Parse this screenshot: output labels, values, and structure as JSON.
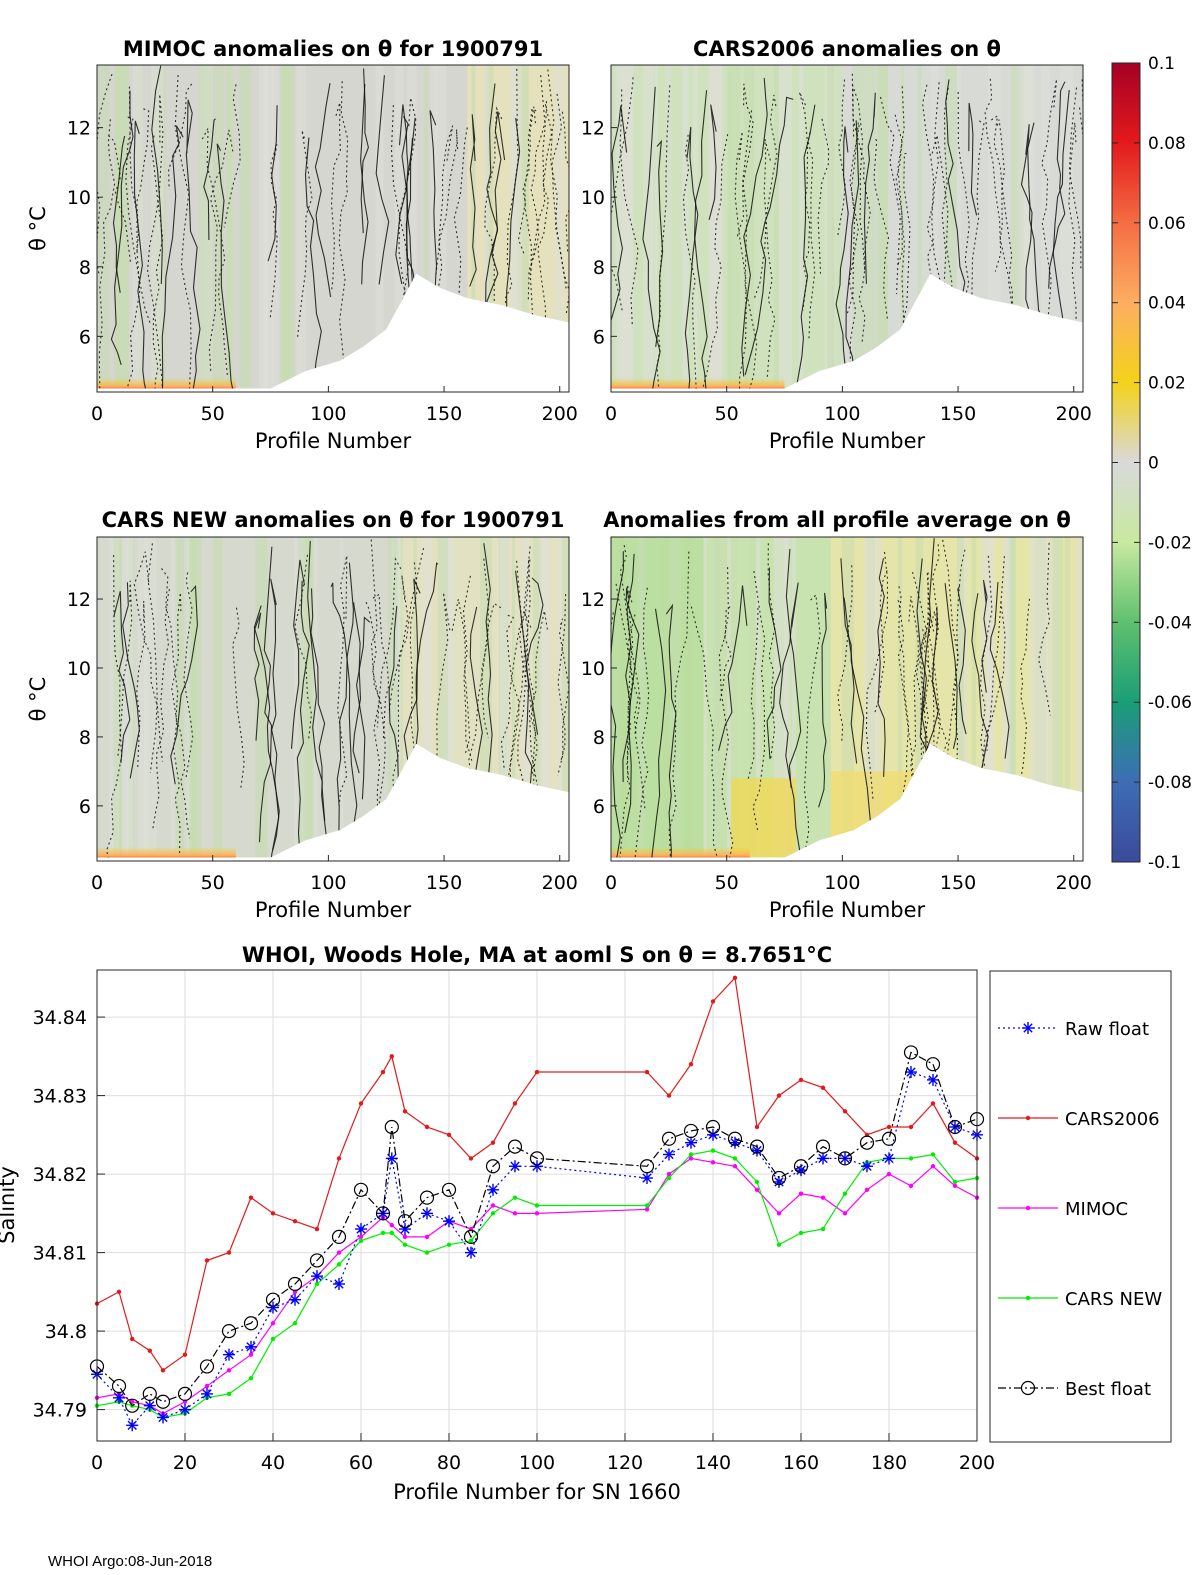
{
  "footer": "WHOI Argo:08-Jun-2018",
  "colorbar": {
    "ticks": [
      "0.1",
      "0.08",
      "0.06",
      "0.04",
      "0.02",
      "0",
      "-0.02",
      "-0.04",
      "-0.06",
      "-0.08",
      "-0.1"
    ],
    "values": [
      0.1,
      0.08,
      0.06,
      0.04,
      0.02,
      0,
      -0.02,
      -0.04,
      -0.06,
      -0.08,
      -0.1
    ],
    "stops": [
      "#a50026",
      "#e31a1c",
      "#f46d43",
      "#fdae61",
      "#f3d21a",
      "#d9d9d9",
      "#c7e9a0",
      "#5fc06e",
      "#1a9e77",
      "#3d6db5",
      "#3b4a9b"
    ]
  },
  "panels": [
    {
      "id": "mimoc",
      "title": "MIMOC anomalies on θ  for 1900791",
      "xlabel": "Profile Number",
      "ylabel": "θ °C",
      "xticks": [
        "0",
        "50",
        "100",
        "150",
        "200"
      ],
      "yticks": [
        "6",
        "8",
        "10",
        "12"
      ],
      "fill": "#d4d6cf",
      "tint": "#e6e3b8",
      "tint_from": 160,
      "tint_to": 204,
      "bottom_hot": true
    },
    {
      "id": "cars2006",
      "title": "CARS2006 anomalies on θ",
      "xlabel": "Profile Number",
      "ylabel": "",
      "xticks": [
        "0",
        "50",
        "100",
        "150",
        "200"
      ],
      "yticks": [
        "6",
        "8",
        "10",
        "12"
      ],
      "fill": "#cfe2bd",
      "tint": "#d9d9d9",
      "tint_from": 100,
      "tint_to": 204,
      "bottom_hot": true
    },
    {
      "id": "carsnew",
      "title": "CARS NEW anomalies on θ for 1900791",
      "xlabel": "Profile Number",
      "ylabel": "θ °C",
      "xticks": [
        "0",
        "50",
        "100",
        "150",
        "200"
      ],
      "yticks": [
        "6",
        "8",
        "10",
        "12"
      ],
      "fill": "#d6d9cd",
      "tint": "#e4e3bf",
      "tint_from": 130,
      "tint_to": 204,
      "bottom_hot": true
    },
    {
      "id": "allavg",
      "title": "Anomalies from all profile average on θ",
      "xlabel": "Profile Number",
      "ylabel": "",
      "xticks": [
        "0",
        "50",
        "100",
        "150",
        "200"
      ],
      "yticks": [
        "6",
        "8",
        "10",
        "12"
      ],
      "fill": "#c9e3b0",
      "tint": "#ebe5a8",
      "tint_from": 95,
      "tint_to": 204,
      "bottom_hot": true
    }
  ],
  "chart_data": {
    "type": "line",
    "title": "WHOI, Woods Hole, MA at aoml S on θ = 8.7651°C",
    "xlabel": "Profile Number for SN 1660",
    "ylabel": "Salinity",
    "xlim": [
      0,
      200
    ],
    "ylim": [
      34.786,
      34.846
    ],
    "xticks": [
      "0",
      "20",
      "40",
      "60",
      "80",
      "100",
      "120",
      "140",
      "160",
      "180",
      "200"
    ],
    "yticks": [
      "34.79",
      "34.8",
      "34.81",
      "34.82",
      "34.83",
      "34.84"
    ],
    "x": [
      0,
      5,
      8,
      12,
      15,
      20,
      25,
      30,
      35,
      40,
      45,
      50,
      55,
      60,
      65,
      67,
      70,
      75,
      80,
      85,
      90,
      95,
      100,
      125,
      130,
      135,
      140,
      145,
      150,
      155,
      160,
      165,
      170,
      175,
      180,
      185,
      190,
      195,
      200
    ],
    "series": [
      {
        "name": "Raw float",
        "color": "#0000ff",
        "style": "dotted",
        "marker": "star",
        "values": [
          34.7945,
          34.7915,
          34.788,
          34.7905,
          34.789,
          34.79,
          34.792,
          34.797,
          34.798,
          34.803,
          34.804,
          34.807,
          34.806,
          34.813,
          34.815,
          34.822,
          34.813,
          34.815,
          34.814,
          34.81,
          34.818,
          34.821,
          34.821,
          34.8195,
          34.8225,
          34.824,
          34.825,
          34.824,
          34.823,
          34.819,
          34.8205,
          34.822,
          34.822,
          34.821,
          34.822,
          34.833,
          34.832,
          34.826,
          34.825
        ]
      },
      {
        "name": "CARS2006",
        "color": "#e31a1c",
        "style": "solid",
        "marker": "dot",
        "values": [
          34.8035,
          34.805,
          34.799,
          34.7975,
          34.795,
          34.797,
          34.809,
          34.81,
          34.817,
          34.815,
          34.814,
          34.813,
          34.822,
          34.829,
          34.833,
          34.835,
          34.828,
          34.826,
          34.825,
          34.822,
          34.824,
          34.829,
          34.833,
          34.833,
          34.83,
          34.834,
          34.842,
          34.845,
          34.826,
          34.83,
          34.832,
          34.831,
          34.828,
          34.825,
          34.826,
          34.826,
          34.829,
          34.824,
          34.822
        ]
      },
      {
        "name": "MIMOC",
        "color": "#ff00ff",
        "style": "solid",
        "marker": "dot",
        "values": [
          34.7915,
          34.792,
          34.791,
          34.7905,
          34.7895,
          34.791,
          34.793,
          34.795,
          34.797,
          34.801,
          34.805,
          34.807,
          34.81,
          34.812,
          34.8145,
          34.8135,
          34.812,
          34.812,
          34.814,
          34.813,
          34.816,
          34.815,
          34.815,
          34.8155,
          34.82,
          34.822,
          34.8215,
          34.821,
          34.818,
          34.815,
          34.8175,
          34.817,
          34.815,
          34.818,
          34.82,
          34.8185,
          34.821,
          34.8185,
          34.817
        ]
      },
      {
        "name": "CARS NEW",
        "color": "#00ee00",
        "style": "solid",
        "marker": "dot",
        "values": [
          34.7905,
          34.791,
          34.7905,
          34.79,
          34.789,
          34.7895,
          34.7915,
          34.792,
          34.794,
          34.799,
          34.801,
          34.806,
          34.8085,
          34.8115,
          34.8125,
          34.8125,
          34.811,
          34.81,
          34.811,
          34.8115,
          34.815,
          34.817,
          34.816,
          34.816,
          34.8195,
          34.8225,
          34.823,
          34.822,
          34.819,
          34.811,
          34.8125,
          34.813,
          34.8175,
          34.8215,
          34.822,
          34.822,
          34.8225,
          34.819,
          34.8195
        ]
      },
      {
        "name": "Best float",
        "color": "#000000",
        "style": "dashdot",
        "marker": "circle",
        "values": [
          34.7955,
          34.793,
          34.7905,
          34.792,
          34.791,
          34.792,
          34.7955,
          34.8,
          34.801,
          34.804,
          34.806,
          34.809,
          34.812,
          34.818,
          34.815,
          34.826,
          34.814,
          34.817,
          34.818,
          34.812,
          34.821,
          34.8235,
          34.822,
          34.821,
          34.8245,
          34.8255,
          34.826,
          34.8245,
          34.8235,
          34.8195,
          34.821,
          34.8235,
          34.822,
          34.824,
          34.8245,
          34.8355,
          34.834,
          34.826,
          34.827
        ]
      }
    ]
  }
}
